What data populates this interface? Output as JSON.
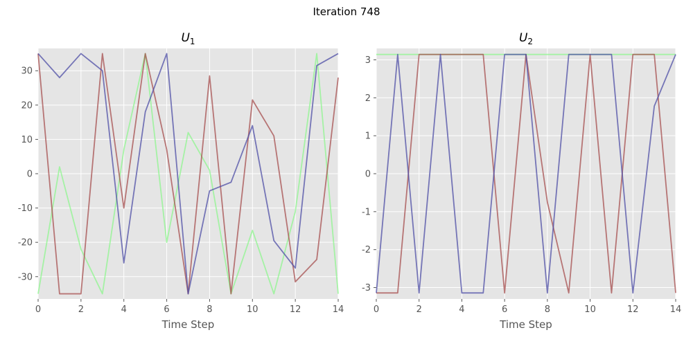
{
  "figure": {
    "suptitle": "Iteration 748"
  },
  "chart_data": [
    {
      "type": "line",
      "title_base": "U",
      "title_sub": "1",
      "xlabel": "Time Step",
      "ylabel": "",
      "xlim": [
        0,
        14
      ],
      "ylim": [
        -36.5,
        36.5
      ],
      "xticks": [
        0,
        2,
        4,
        6,
        8,
        10,
        12,
        14
      ],
      "yticks": [
        -30,
        -20,
        -10,
        0,
        10,
        20,
        30
      ],
      "grid": true,
      "x": [
        0,
        1,
        2,
        3,
        4,
        5,
        6,
        7,
        8,
        9,
        10,
        11,
        12,
        13,
        14
      ],
      "series": [
        {
          "color": "#8ef58e",
          "values": [
            -35,
            2,
            -22,
            -35,
            7,
            35,
            -20,
            12,
            1,
            -35,
            -16.5,
            -35,
            -11,
            35,
            -35
          ]
        },
        {
          "color": "#a64d4d",
          "values": [
            35,
            -35,
            -35,
            35,
            -10,
            35,
            7,
            -35,
            28.5,
            -35,
            21.5,
            11,
            -31.5,
            -25,
            28
          ]
        },
        {
          "color": "#4d4da6",
          "values": [
            35,
            28,
            35,
            30,
            -26,
            18,
            35,
            -35,
            -5,
            -2.5,
            14,
            -19.5,
            -27.5,
            31.5,
            35
          ]
        }
      ]
    },
    {
      "type": "line",
      "title_base": "U",
      "title_sub": "2",
      "xlabel": "Time Step",
      "ylabel": "",
      "xlim": [
        0,
        14
      ],
      "ylim": [
        -3.3,
        3.3
      ],
      "xticks": [
        0,
        2,
        4,
        6,
        8,
        10,
        12,
        14
      ],
      "yticks": [
        -3,
        -2,
        -1,
        0,
        1,
        2,
        3
      ],
      "grid": true,
      "x": [
        0,
        1,
        2,
        3,
        4,
        5,
        6,
        7,
        8,
        9,
        10,
        11,
        12,
        13,
        14
      ],
      "series": [
        {
          "color": "#8ef58e",
          "values": [
            3.1416,
            3.1416,
            3.1416,
            3.1416,
            3.1416,
            3.1416,
            3.1416,
            3.1416,
            3.1416,
            3.1416,
            3.1416,
            3.1416,
            3.1416,
            3.1416,
            3.1416
          ]
        },
        {
          "color": "#a64d4d",
          "values": [
            -3.1416,
            -3.1416,
            3.1416,
            3.1416,
            3.1416,
            3.1416,
            -3.1416,
            3.1416,
            -0.75,
            -3.1416,
            3.1416,
            -3.1416,
            3.1416,
            3.1416,
            -3.1416
          ]
        },
        {
          "color": "#4d4da6",
          "values": [
            -3.1416,
            3.1416,
            -3.1416,
            3.1416,
            -3.1416,
            -3.1416,
            3.1416,
            3.1416,
            -3.1416,
            3.1416,
            3.1416,
            3.1416,
            -3.1416,
            1.78,
            3.1416
          ]
        }
      ]
    }
  ]
}
